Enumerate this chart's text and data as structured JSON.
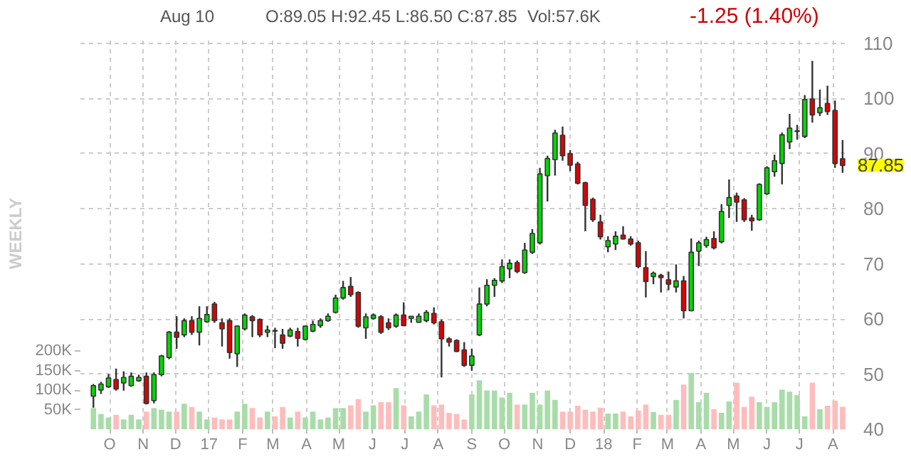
{
  "chart_data": {
    "type": "candlestick",
    "annotations": [
      "Aug 10",
      "O:89.05  H:92.45  L:86.50  C:87.85",
      "Vol:57.6K",
      "-1.25 (1.40%)",
      "WEEKLY",
      "87.85"
    ],
    "x": [
      "2016-09-16",
      "2016-09-23",
      "2016-09-30",
      "2016-10-07",
      "2016-10-14",
      "2016-10-21",
      "2016-10-28",
      "2016-11-04",
      "2016-11-11",
      "2016-11-18",
      "2016-11-25",
      "2016-12-02",
      "2016-12-09",
      "2016-12-16",
      "2016-12-23",
      "2016-12-30",
      "2017-01-06",
      "2017-01-13",
      "2017-01-20",
      "2017-01-27",
      "2017-02-03",
      "2017-02-10",
      "2017-02-17",
      "2017-02-24",
      "2017-03-03",
      "2017-03-10",
      "2017-03-17",
      "2017-03-24",
      "2017-03-31",
      "2017-04-07",
      "2017-04-14",
      "2017-04-21",
      "2017-04-28",
      "2017-05-05",
      "2017-05-12",
      "2017-05-19",
      "2017-05-26",
      "2017-06-02",
      "2017-06-09",
      "2017-06-16",
      "2017-06-23",
      "2017-06-30",
      "2017-07-07",
      "2017-07-14",
      "2017-07-21",
      "2017-07-28",
      "2017-08-04",
      "2017-08-11",
      "2017-08-18",
      "2017-08-25",
      "2017-09-01",
      "2017-09-08",
      "2017-09-15",
      "2017-09-22",
      "2017-09-29",
      "2017-10-06",
      "2017-10-13",
      "2017-10-20",
      "2017-10-27",
      "2017-11-03",
      "2017-11-10",
      "2017-11-17",
      "2017-11-24",
      "2017-12-01",
      "2017-12-08",
      "2017-12-15",
      "2017-12-22",
      "2017-12-29",
      "2018-01-05",
      "2018-01-12",
      "2018-01-19",
      "2018-01-26",
      "2018-02-02",
      "2018-02-09",
      "2018-02-16",
      "2018-02-23",
      "2018-03-02",
      "2018-03-09",
      "2018-03-16",
      "2018-03-23",
      "2018-03-30",
      "2018-04-06",
      "2018-04-13",
      "2018-04-20",
      "2018-04-27",
      "2018-05-04",
      "2018-05-11",
      "2018-05-18",
      "2018-05-25",
      "2018-06-01",
      "2018-06-08",
      "2018-06-15",
      "2018-06-22",
      "2018-06-29",
      "2018-07-06",
      "2018-07-13",
      "2018-07-20",
      "2018-07-27",
      "2018-08-03",
      "2018-08-10"
    ],
    "ohlc": [
      [
        46.0,
        48.2,
        43.9,
        47.9
      ],
      [
        47.1,
        48.6,
        46.4,
        48.2
      ],
      [
        47.7,
        50.0,
        47.5,
        49.3
      ],
      [
        49.0,
        51.0,
        47.0,
        47.3
      ],
      [
        48.4,
        50.5,
        47.0,
        49.4
      ],
      [
        47.9,
        50.3,
        47.7,
        49.6
      ],
      [
        48.8,
        49.9,
        48.6,
        49.4
      ],
      [
        49.6,
        50.3,
        44.5,
        44.7
      ],
      [
        45.2,
        50.3,
        44.7,
        49.9
      ],
      [
        49.9,
        53.5,
        49.6,
        53.3
      ],
      [
        53.0,
        57.8,
        52.7,
        57.6
      ],
      [
        57.6,
        60.5,
        54.6,
        56.7
      ],
      [
        57.1,
        60.1,
        56.7,
        59.7
      ],
      [
        59.7,
        60.5,
        57.1,
        57.6
      ],
      [
        57.6,
        62.3,
        55.2,
        60.1
      ],
      [
        59.5,
        62.3,
        59.3,
        60.8
      ],
      [
        62.7,
        63.1,
        59.3,
        59.7
      ],
      [
        59.3,
        60.1,
        55.0,
        58.2
      ],
      [
        59.7,
        60.1,
        52.8,
        53.9
      ],
      [
        53.7,
        58.8,
        51.3,
        58.7
      ],
      [
        58.2,
        61.0,
        57.9,
        60.7
      ],
      [
        60.4,
        60.7,
        56.7,
        59.7
      ],
      [
        59.9,
        60.1,
        56.7,
        57.1
      ],
      [
        57.6,
        58.8,
        56.7,
        58.0
      ],
      [
        57.9,
        58.4,
        54.7,
        57.8
      ],
      [
        57.1,
        58.2,
        54.6,
        55.6
      ],
      [
        56.9,
        58.4,
        56.7,
        58.0
      ],
      [
        57.7,
        58.4,
        55.0,
        56.5
      ],
      [
        56.3,
        58.8,
        56.1,
        58.7
      ],
      [
        57.8,
        59.7,
        57.6,
        59.0
      ],
      [
        58.8,
        60.1,
        58.4,
        59.7
      ],
      [
        59.7,
        61.0,
        59.5,
        60.5
      ],
      [
        61.2,
        64.4,
        61.0,
        63.8
      ],
      [
        63.8,
        66.9,
        63.5,
        65.7
      ],
      [
        65.9,
        67.6,
        64.0,
        64.4
      ],
      [
        64.8,
        65.0,
        58.4,
        58.7
      ],
      [
        58.4,
        61.0,
        56.4,
        60.4
      ],
      [
        60.1,
        61.0,
        59.9,
        60.7
      ],
      [
        60.4,
        60.7,
        57.3,
        57.6
      ],
      [
        59.3,
        60.1,
        58.0,
        58.4
      ],
      [
        58.7,
        61.0,
        58.4,
        60.7
      ],
      [
        60.7,
        63.0,
        58.7,
        58.8
      ],
      [
        60.1,
        60.5,
        59.3,
        60.5
      ],
      [
        59.4,
        61.0,
        59.3,
        60.5
      ],
      [
        59.7,
        61.6,
        59.4,
        61.2
      ],
      [
        61.0,
        62.1,
        59.0,
        59.3
      ],
      [
        59.5,
        59.9,
        49.4,
        56.4
      ],
      [
        56.4,
        56.7,
        55.0,
        55.8
      ],
      [
        56.1,
        56.3,
        54.0,
        54.1
      ],
      [
        54.4,
        55.8,
        51.3,
        51.6
      ],
      [
        51.6,
        54.6,
        50.6,
        53.3
      ],
      [
        57.1,
        65.7,
        56.9,
        62.7
      ],
      [
        62.7,
        67.2,
        62.3,
        66.1
      ],
      [
        66.1,
        67.4,
        64.0,
        67.0
      ],
      [
        66.9,
        70.8,
        66.5,
        69.5
      ],
      [
        69.1,
        70.8,
        67.4,
        70.1
      ],
      [
        70.2,
        70.6,
        68.3,
        68.6
      ],
      [
        68.4,
        73.8,
        68.2,
        72.5
      ],
      [
        72.1,
        76.3,
        71.8,
        75.5
      ],
      [
        73.8,
        87.4,
        73.5,
        86.3
      ],
      [
        86.0,
        89.6,
        81.3,
        89.1
      ],
      [
        88.9,
        94.3,
        86.0,
        93.7
      ],
      [
        93.3,
        94.9,
        88.7,
        89.6
      ],
      [
        90.0,
        90.6,
        86.8,
        87.9
      ],
      [
        88.1,
        88.5,
        84.4,
        84.6
      ],
      [
        84.7,
        84.9,
        75.9,
        80.6
      ],
      [
        81.7,
        82.0,
        77.6,
        78.0
      ],
      [
        77.6,
        78.9,
        74.4,
        74.9
      ],
      [
        73.1,
        75.0,
        72.1,
        74.2
      ],
      [
        73.6,
        75.9,
        72.5,
        75.0
      ],
      [
        75.2,
        76.8,
        74.4,
        74.5
      ],
      [
        74.5,
        75.0,
        73.3,
        73.6
      ],
      [
        73.8,
        74.2,
        69.2,
        69.5
      ],
      [
        69.3,
        72.3,
        63.9,
        66.8
      ],
      [
        67.7,
        68.6,
        66.3,
        68.3
      ],
      [
        67.9,
        68.2,
        64.8,
        67.5
      ],
      [
        67.1,
        68.6,
        65.2,
        66.3
      ],
      [
        65.8,
        69.9,
        64.8,
        66.9
      ],
      [
        66.9,
        67.8,
        60.1,
        61.5
      ],
      [
        61.5,
        74.6,
        61.4,
        72.1
      ],
      [
        72.3,
        74.2,
        69.6,
        73.8
      ],
      [
        73.3,
        74.9,
        72.9,
        74.4
      ],
      [
        74.6,
        75.9,
        72.6,
        72.9
      ],
      [
        74.0,
        80.8,
        73.7,
        79.5
      ],
      [
        80.6,
        85.3,
        78.3,
        82.0
      ],
      [
        82.3,
        82.9,
        77.6,
        81.2
      ],
      [
        81.6,
        81.9,
        77.6,
        78.0
      ],
      [
        78.3,
        78.9,
        76.0,
        77.8
      ],
      [
        78.0,
        84.6,
        77.8,
        84.4
      ],
      [
        82.7,
        87.7,
        82.5,
        87.4
      ],
      [
        86.7,
        89.8,
        85.8,
        88.7
      ],
      [
        88.2,
        93.8,
        84.4,
        93.4
      ],
      [
        92.1,
        97.2,
        90.8,
        94.6
      ],
      [
        94.0,
        95.2,
        92.5,
        94.1
      ],
      [
        93.1,
        100.6,
        92.8,
        99.8
      ],
      [
        99.9,
        106.8,
        95.6,
        97.0
      ],
      [
        97.4,
        101.6,
        96.8,
        98.3
      ],
      [
        99.1,
        102.3,
        97.0,
        97.6
      ],
      [
        97.8,
        99.6,
        87.4,
        88.2
      ],
      [
        89.05,
        92.45,
        86.5,
        87.85
      ]
    ],
    "colors": [
      "#00d800",
      "#00d800",
      "#00d800",
      "#e00000",
      "#00d800",
      "#00d800",
      "#00d800",
      "#e00000",
      "#00d800",
      "#00d800",
      "#00d800",
      "#e00000",
      "#00d800",
      "#e00000",
      "#00d800",
      "#00d800",
      "#e00000",
      "#e00000",
      "#e00000",
      "#00d800",
      "#00d800",
      "#e00000",
      "#e00000",
      "#00d800",
      "#e00000",
      "#e00000",
      "#00d800",
      "#e00000",
      "#00d800",
      "#00d800",
      "#00d800",
      "#00d800",
      "#00d800",
      "#00d800",
      "#e00000",
      "#e00000",
      "#00d800",
      "#00d800",
      "#e00000",
      "#e00000",
      "#00d800",
      "#e00000",
      "#00d800",
      "#00d800",
      "#00d800",
      "#e00000",
      "#e00000",
      "#e00000",
      "#e00000",
      "#e00000",
      "#00d800",
      "#00d800",
      "#00d800",
      "#00d800",
      "#00d800",
      "#00d800",
      "#e00000",
      "#00d800",
      "#00d800",
      "#00d800",
      "#00d800",
      "#00d800",
      "#e00000",
      "#e00000",
      "#e00000",
      "#e00000",
      "#e00000",
      "#e00000",
      "#00d800",
      "#00d800",
      "#e00000",
      "#e00000",
      "#e00000",
      "#e00000",
      "#00d800",
      "#e00000",
      "#e00000",
      "#00d800",
      "#e00000",
      "#00d800",
      "#00d800",
      "#00d800",
      "#e00000",
      "#00d800",
      "#00d800",
      "#e00000",
      "#e00000",
      "#e00000",
      "#00d800",
      "#00d800",
      "#00d800",
      "#00d800",
      "#00d800",
      "#00d800",
      "#00d800",
      "#e00000",
      "#00d800",
      "#e00000",
      "#e00000",
      "#e00000"
    ],
    "series": [
      {
        "type": "bar",
        "axis": "y2",
        "values": [
          54000,
          39000,
          30000,
          37000,
          25000,
          37000,
          25000,
          45000,
          54000,
          50000,
          45000,
          45000,
          65000,
          57000,
          45000,
          25000,
          30000,
          25000,
          25000,
          45000,
          65000,
          54000,
          30000,
          45000,
          33000,
          57000,
          30000,
          45000,
          30000,
          45000,
          25000,
          30000,
          54000,
          54000,
          61000,
          77000,
          45000,
          61000,
          69000,
          69000,
          105000,
          61000,
          33000,
          45000,
          89000,
          61000,
          63000,
          42000,
          39000,
          25000,
          89000,
          125000,
          99000,
          99000,
          81000,
          93000,
          63000,
          63000,
          93000,
          63000,
          99000,
          75000,
          45000,
          45000,
          60000,
          50000,
          45000,
          55000,
          40000,
          40000,
          45000,
          33000,
          48000,
          63000,
          44000,
          37000,
          37000,
          75000,
          114000,
          144000,
          69000,
          93000,
          51000,
          42000,
          71000,
          119000,
          57000,
          83000,
          69000,
          57000,
          69000,
          101000,
          96000,
          87000,
          33000,
          119000,
          51000,
          60000,
          73000,
          57600
        ],
        "colors": [
          "#a8dca8",
          "#a8dca8",
          "#a8dca8",
          "#ffbcbc",
          "#a8dca8",
          "#a8dca8",
          "#a8dca8",
          "#ffbcbc",
          "#a8dca8",
          "#a8dca8",
          "#a8dca8",
          "#ffbcbc",
          "#a8dca8",
          "#ffbcbc",
          "#a8dca8",
          "#a8dca8",
          "#ffbcbc",
          "#ffbcbc",
          "#ffbcbc",
          "#a8dca8",
          "#a8dca8",
          "#ffbcbc",
          "#ffbcbc",
          "#a8dca8",
          "#ffbcbc",
          "#ffbcbc",
          "#a8dca8",
          "#ffbcbc",
          "#a8dca8",
          "#a8dca8",
          "#a8dca8",
          "#a8dca8",
          "#a8dca8",
          "#a8dca8",
          "#ffbcbc",
          "#ffbcbc",
          "#a8dca8",
          "#a8dca8",
          "#ffbcbc",
          "#ffbcbc",
          "#a8dca8",
          "#ffbcbc",
          "#a8dca8",
          "#a8dca8",
          "#a8dca8",
          "#ffbcbc",
          "#ffbcbc",
          "#ffbcbc",
          "#ffbcbc",
          "#ffbcbc",
          "#a8dca8",
          "#a8dca8",
          "#a8dca8",
          "#a8dca8",
          "#a8dca8",
          "#a8dca8",
          "#ffbcbc",
          "#a8dca8",
          "#a8dca8",
          "#a8dca8",
          "#a8dca8",
          "#a8dca8",
          "#ffbcbc",
          "#ffbcbc",
          "#ffbcbc",
          "#ffbcbc",
          "#ffbcbc",
          "#ffbcbc",
          "#a8dca8",
          "#a8dca8",
          "#ffbcbc",
          "#ffbcbc",
          "#ffbcbc",
          "#ffbcbc",
          "#a8dca8",
          "#ffbcbc",
          "#ffbcbc",
          "#a8dca8",
          "#ffbcbc",
          "#a8dca8",
          "#a8dca8",
          "#a8dca8",
          "#ffbcbc",
          "#a8dca8",
          "#a8dca8",
          "#ffbcbc",
          "#ffbcbc",
          "#ffbcbc",
          "#a8dca8",
          "#a8dca8",
          "#a8dca8",
          "#a8dca8",
          "#a8dca8",
          "#a8dca8",
          "#a8dca8",
          "#ffbcbc",
          "#a8dca8",
          "#ffbcbc",
          "#ffbcbc",
          "#ffbcbc"
        ]
      }
    ],
    "xlim": [
      "2016-09-04",
      "2018-08-16"
    ],
    "xticks": [
      {
        "value": "2016-10-01",
        "label": "O"
      },
      {
        "value": "2016-11-01",
        "label": "N"
      },
      {
        "value": "2016-12-01",
        "label": "D"
      },
      {
        "value": "2017-01-01",
        "label": "17"
      },
      {
        "value": "2017-02-01",
        "label": "F"
      },
      {
        "value": "2017-03-01",
        "label": "M"
      },
      {
        "value": "2017-04-01",
        "label": "A"
      },
      {
        "value": "2017-05-01",
        "label": "M"
      },
      {
        "value": "2017-06-01",
        "label": "J"
      },
      {
        "value": "2017-07-01",
        "label": "J"
      },
      {
        "value": "2017-08-01",
        "label": "A"
      },
      {
        "value": "2017-09-01",
        "label": "S"
      },
      {
        "value": "2017-10-01",
        "label": "O"
      },
      {
        "value": "2017-11-01",
        "label": "N"
      },
      {
        "value": "2017-12-01",
        "label": "D"
      },
      {
        "value": "2018-01-01",
        "label": "18"
      },
      {
        "value": "2018-02-01",
        "label": "F"
      },
      {
        "value": "2018-03-01",
        "label": "M"
      },
      {
        "value": "2018-04-01",
        "label": "A"
      },
      {
        "value": "2018-05-01",
        "label": "M"
      },
      {
        "value": "2018-06-01",
        "label": "J"
      },
      {
        "value": "2018-07-01",
        "label": "J"
      },
      {
        "value": "2018-08-01",
        "label": "A"
      }
    ],
    "ylim": [
      40,
      111
    ],
    "yticks": [
      40,
      50,
      60,
      70,
      80,
      90,
      100,
      110
    ],
    "y2lim": [
      0,
      1000000
    ],
    "y2ticks": [
      {
        "value": 50000,
        "label": "50K"
      },
      {
        "value": 100000,
        "label": "100K"
      },
      {
        "value": 150000,
        "label": "150K"
      },
      {
        "value": 200000,
        "label": "200K"
      }
    ],
    "grid": true
  }
}
